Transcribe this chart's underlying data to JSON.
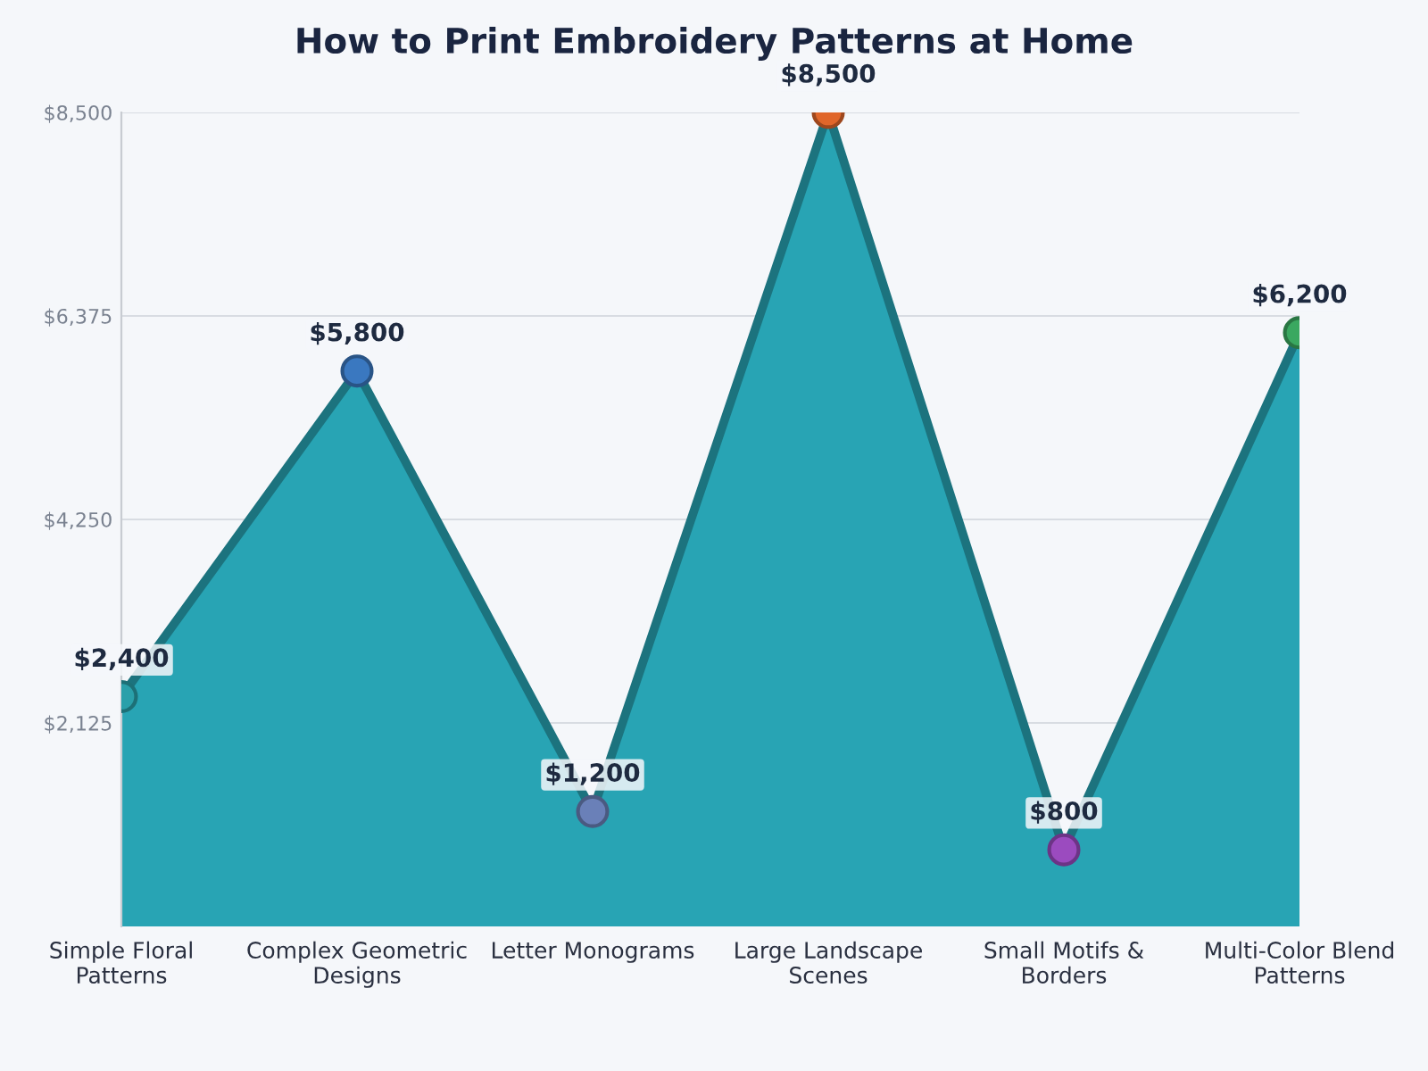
{
  "chart_data": {
    "type": "area",
    "title": "How to Print Embroidery Patterns at Home",
    "categories": [
      "Simple Floral\nPatterns",
      "Complex Geometric\nDesigns",
      "Letter Monograms",
      "Large Landscape\nScenes",
      "Small Motifs &\nBorders",
      "Multi-Color Blend\nPatterns"
    ],
    "series": [
      {
        "color": "#28a4b4",
        "values": [
          2400,
          5800,
          1200,
          8500,
          800,
          6200
        ],
        "colors": [
          "#2aa0aa",
          "#3a78c0",
          "#6a80b8",
          "#e0662a",
          "#9b4bbf",
          "#3aa860"
        ],
        "value_labels": [
          "$2,400",
          "$5,800",
          "$1,200",
          "$8,500",
          "$800",
          "$6,200"
        ]
      }
    ],
    "ylim": [
      0,
      8500
    ],
    "yticks": [
      {
        "value": 2125,
        "label": "$2,125"
      },
      {
        "value": 4250,
        "label": "$4,250"
      },
      {
        "value": 6375,
        "label": "$6,375"
      },
      {
        "value": 8500,
        "label": "$8,500"
      }
    ],
    "grid": "y",
    "marker": "circle",
    "legend": false
  }
}
